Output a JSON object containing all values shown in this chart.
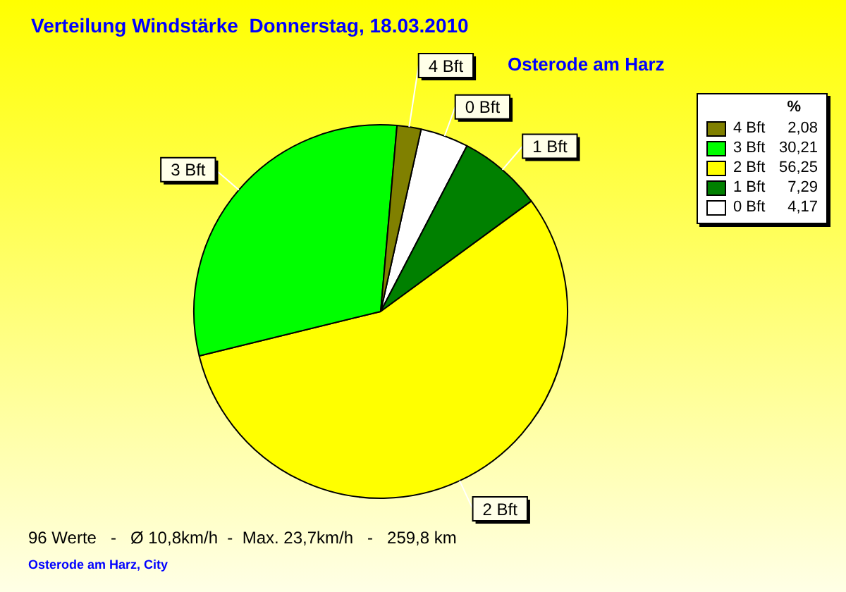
{
  "chart_data": {
    "type": "pie",
    "title": "Verteilung Windstärke  Donnerstag, 18.03.2010",
    "subtitle": "Osterode am Harz",
    "legend_title": "%",
    "categories": [
      "0 Bft",
      "1 Bft",
      "2 Bft",
      "3 Bft",
      "4 Bft"
    ],
    "values": [
      4.17,
      7.29,
      56.25,
      30.21,
      2.08
    ],
    "colors": [
      "#ffffff",
      "#008000",
      "#ffff00",
      "#00ff00",
      "#808000"
    ],
    "value_labels": [
      "4,17",
      "7,29",
      "56,25",
      "30,21",
      "2,08"
    ],
    "legend": "top right",
    "annotations": [
      "96 Werte   -   Ø 10,8km/h  -  Max. 23,7km/h   -   259,8 km",
      "Osterode am Harz, City"
    ]
  }
}
